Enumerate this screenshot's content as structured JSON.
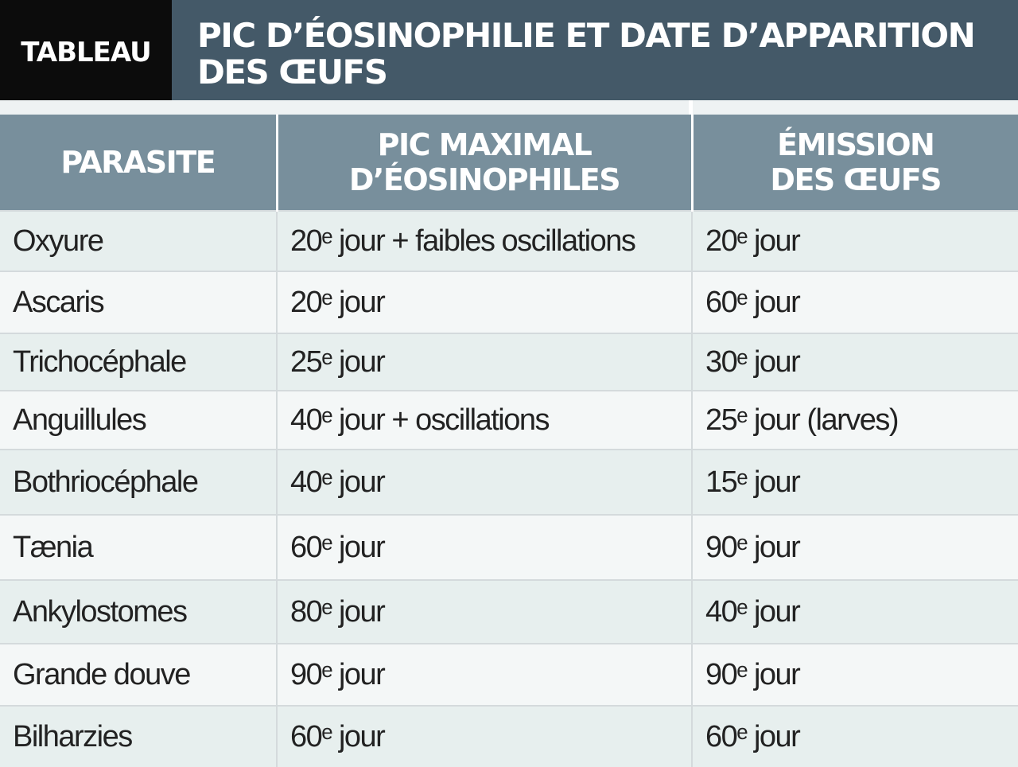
{
  "header": {
    "label": "TABLEAU",
    "title_line1": "PIC D’ÉOSINOPHILIE ET DATE D’APPARITION",
    "title_line2": "DES ŒUFS"
  },
  "table": {
    "columns": [
      {
        "line1": "PARASITE",
        "line2": ""
      },
      {
        "line1": "PIC MAXIMAL",
        "line2": "D’ÉOSINOPHILES"
      },
      {
        "line1": "ÉMISSION",
        "line2": "DES ŒUFS"
      }
    ],
    "rows": [
      {
        "parasite": "Oxyure",
        "pic": "20ᵉ jour + faibles oscillations",
        "emission": "20ᵉ jour"
      },
      {
        "parasite": "Ascaris",
        "pic": "20ᵉ jour",
        "emission": "60ᵉ jour"
      },
      {
        "parasite": "Trichocéphale",
        "pic": "25ᵉ jour",
        "emission": "30ᵉ jour"
      },
      {
        "parasite": "Anguillules",
        "pic": "40ᵉ jour + oscillations",
        "emission": "25ᵉ jour (larves)"
      },
      {
        "parasite": "Bothriocéphale",
        "pic": "40ᵉ jour",
        "emission": "15ᵉ jour"
      },
      {
        "parasite": "Tænia",
        "pic": "60ᵉ jour",
        "emission": "90ᵉ jour"
      },
      {
        "parasite": "Ankylostomes",
        "pic": "80ᵉ jour",
        "emission": "40ᵉ jour"
      },
      {
        "parasite": "Grande douve",
        "pic": "90ᵉ jour",
        "emission": "90ᵉ jour"
      },
      {
        "parasite": "Bilharzies",
        "pic": "60ᵉ jour",
        "emission": "60ᵉ jour"
      }
    ]
  }
}
